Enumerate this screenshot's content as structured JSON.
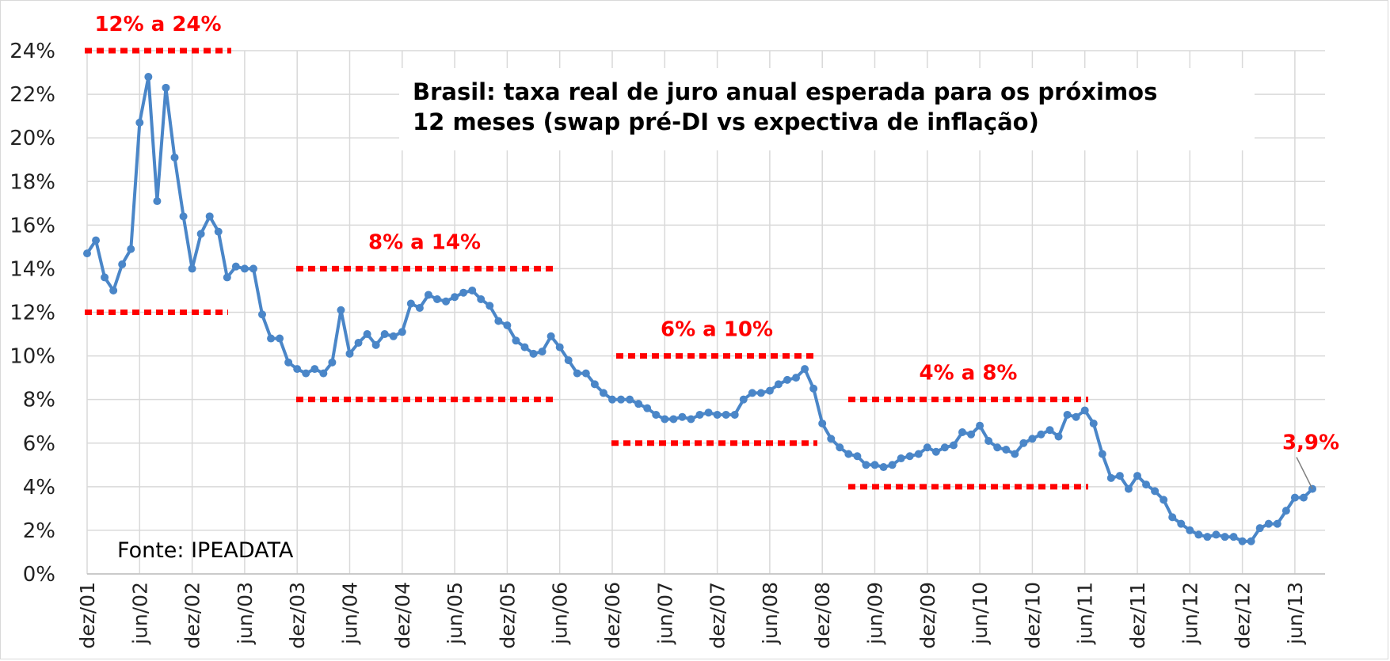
{
  "chart_data": {
    "type": "line",
    "title": "Brasil: taxa real de juro anual esperada para os próximos 12 meses (swap pré-DI vs expectiva de inflação)",
    "source": "Fonte: IPEADATA",
    "xlabel": "",
    "ylabel": "",
    "ylim": [
      0,
      24
    ],
    "y_ticks": [
      "0%",
      "2%",
      "4%",
      "6%",
      "8%",
      "10%",
      "12%",
      "14%",
      "16%",
      "18%",
      "20%",
      "22%",
      "24%"
    ],
    "x_ticks": [
      "dez/01",
      "jun/02",
      "dez/02",
      "jun/03",
      "dez/03",
      "jun/04",
      "dez/04",
      "jun/05",
      "dez/05",
      "jun/06",
      "dez/06",
      "jun/07",
      "dez/07",
      "jun/08",
      "dez/08",
      "jun/09",
      "dez/09",
      "jun/10",
      "dez/10",
      "jun/11",
      "dez/11",
      "jun/12",
      "dez/12",
      "jun/13"
    ],
    "grid": true,
    "series": [
      {
        "color": "#4a86c8",
        "values": [
          14.7,
          15.3,
          13.6,
          13.0,
          14.2,
          14.9,
          20.7,
          22.8,
          17.1,
          22.3,
          19.1,
          16.4,
          14.0,
          15.6,
          16.4,
          15.7,
          13.6,
          14.1,
          14.0,
          14.0,
          11.9,
          10.8,
          10.8,
          9.7,
          9.4,
          9.2,
          9.4,
          9.2,
          9.7,
          12.1,
          10.1,
          10.6,
          11.0,
          10.5,
          11.0,
          10.9,
          11.1,
          12.4,
          12.2,
          12.8,
          12.6,
          12.5,
          12.7,
          12.9,
          13.0,
          12.6,
          12.3,
          11.6,
          11.4,
          10.7,
          10.4,
          10.1,
          10.2,
          10.9,
          10.4,
          9.8,
          9.2,
          9.2,
          8.7,
          8.3,
          8.0,
          8.0,
          8.0,
          7.8,
          7.6,
          7.3,
          7.1,
          7.1,
          7.2,
          7.1,
          7.3,
          7.4,
          7.3,
          7.3,
          7.3,
          8.0,
          8.3,
          8.3,
          8.4,
          8.7,
          8.9,
          9.0,
          9.4,
          8.5,
          6.9,
          6.2,
          5.8,
          5.5,
          5.4,
          5.0,
          5.0,
          4.9,
          5.0,
          5.3,
          5.4,
          5.5,
          5.8,
          5.6,
          5.8,
          5.9,
          6.5,
          6.4,
          6.8,
          6.1,
          5.8,
          5.7,
          5.5,
          6.0,
          6.2,
          6.4,
          6.6,
          6.3,
          7.3,
          7.2,
          7.5,
          6.9,
          5.5,
          4.4,
          4.5,
          3.9,
          4.5,
          4.1,
          3.8,
          3.4,
          2.6,
          2.3,
          2.0,
          1.8,
          1.7,
          1.8,
          1.7,
          1.7,
          1.5,
          1.5,
          2.1,
          2.3,
          2.3,
          2.9,
          3.5,
          3.5,
          3.9
        ]
      }
    ],
    "bands": [
      {
        "label": "12% a 24%",
        "low": 12,
        "high": 24,
        "start": "dez/01",
        "end": "dez/02",
        "color": "#ff0000"
      },
      {
        "label": "8% a 14%",
        "low": 8,
        "high": 14,
        "start": "dez/03",
        "end": "dez/05",
        "color": "#ff0000"
      },
      {
        "label": "6% a 10%",
        "low": 6,
        "high": 10,
        "start": "dez/06",
        "end": "dez/08",
        "color": "#ff0000"
      },
      {
        "label": "4% a 8%",
        "low": 4,
        "high": 8,
        "start": "dez/08",
        "end": "jun/11",
        "color": "#ff0000"
      }
    ],
    "annotations": [
      {
        "label": "3,9%",
        "value": 3.9,
        "color": "#ff0000"
      }
    ]
  }
}
